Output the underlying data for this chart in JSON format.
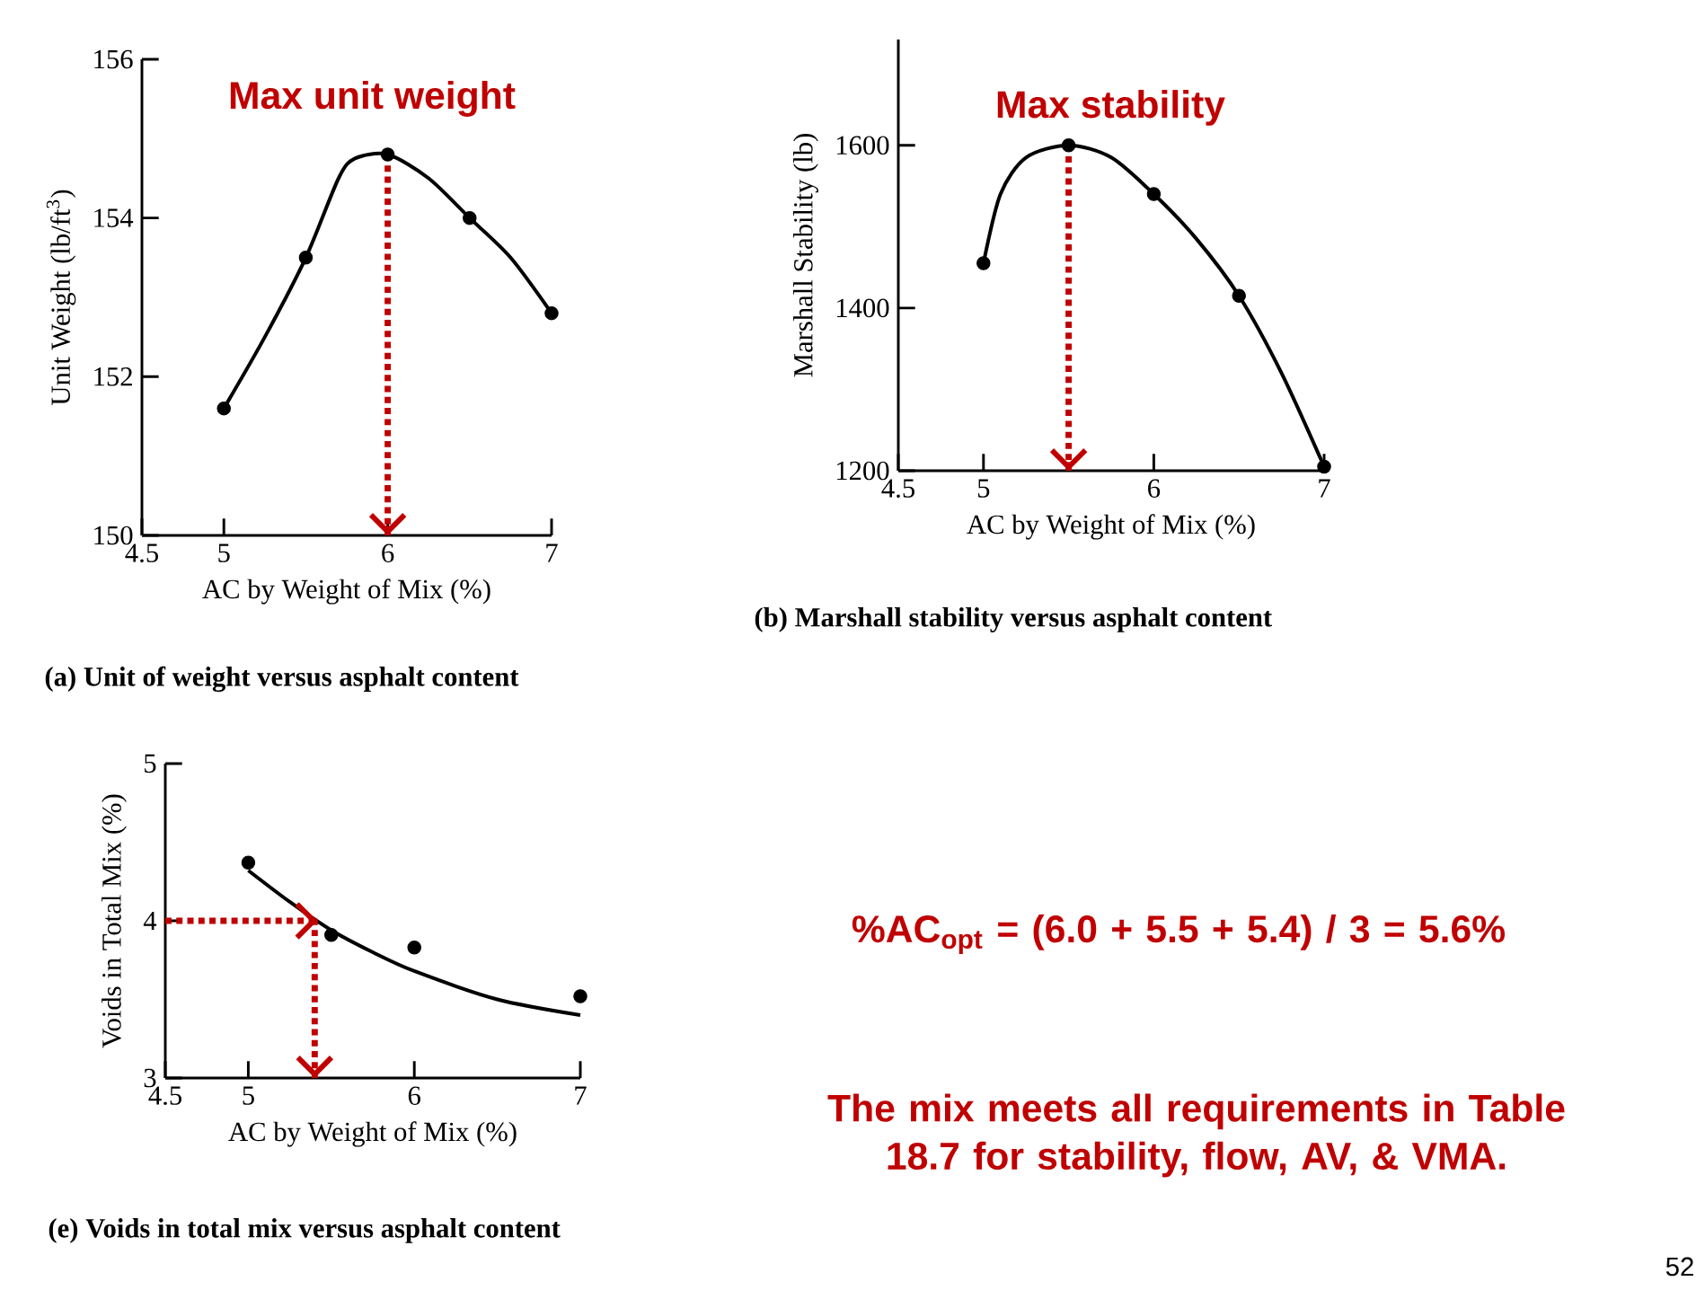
{
  "chart_data": [
    {
      "type": "scatter",
      "title": "(a) Unit of weight versus asphalt content",
      "xlabel": "AC by Weight of Mix (%)",
      "ylabel": "Unit Weight (lb/ft$^{3}$)",
      "xlim": [
        4.5,
        7
      ],
      "ylim": [
        150,
        156
      ],
      "xticks": [
        4.5,
        5,
        6,
        7
      ],
      "yticks": [
        150,
        152,
        154,
        156
      ],
      "annotations": [
        "Max unit weight"
      ],
      "series": [
        {
          "type": "scatter",
          "color": "#000000",
          "x": [
            5,
            5.5,
            6,
            6.5,
            7
          ],
          "values": [
            151.6,
            153.5,
            154.8,
            154.0,
            152.8
          ]
        },
        {
          "type": "line",
          "color": "#000000",
          "x": [
            5,
            5.25,
            5.5,
            5.7,
            5.8,
            6,
            6.25,
            6.5,
            6.75,
            7
          ],
          "values": [
            151.6,
            152.5,
            153.5,
            154.5,
            154.75,
            154.8,
            154.5,
            154.0,
            153.5,
            152.8
          ]
        }
      ],
      "ref_lines": [
        {
          "axis": "x",
          "value": 6,
          "color": "#c00000",
          "line_style": "dotted"
        }
      ]
    },
    {
      "type": "scatter",
      "title": "(b) Marshall stability versus asphalt content",
      "xlabel": "AC by Weight of Mix (%)",
      "ylabel": "Marshall Stability (lb)",
      "xlim": [
        4.5,
        7
      ],
      "ylim": [
        1200,
        1730
      ],
      "xticks": [
        4.5,
        5,
        6,
        7
      ],
      "yticks": [
        1200,
        1400,
        1600
      ],
      "annotations": [
        "Max stability"
      ],
      "series": [
        {
          "type": "scatter",
          "color": "#000000",
          "x": [
            5,
            5.5,
            6,
            6.5,
            7
          ],
          "values": [
            1455,
            1600,
            1540,
            1415,
            1205
          ]
        },
        {
          "type": "line",
          "color": "#000000",
          "x": [
            5,
            5.1,
            5.25,
            5.5,
            5.75,
            6,
            6.25,
            6.5,
            6.75,
            7
          ],
          "values": [
            1455,
            1540,
            1585,
            1600,
            1585,
            1540,
            1485,
            1415,
            1320,
            1205
          ]
        }
      ],
      "ref_lines": [
        {
          "axis": "x",
          "value": 5.5,
          "color": "#c00000",
          "line_style": "dotted"
        }
      ]
    },
    {
      "type": "scatter",
      "title": "(e) Voids in total mix versus asphalt content",
      "xlabel": "AC by Weight of Mix (%)",
      "ylabel": "Voids in Total Mix (%)",
      "xlim": [
        4.5,
        7
      ],
      "ylim": [
        3,
        5
      ],
      "xticks": [
        4.5,
        5,
        6,
        7
      ],
      "yticks": [
        3,
        4,
        5
      ],
      "series": [
        {
          "type": "scatter",
          "color": "#000000",
          "x": [
            5,
            5.5,
            6,
            7
          ],
          "values": [
            4.37,
            3.91,
            3.83,
            3.52
          ]
        },
        {
          "type": "line",
          "color": "#000000",
          "x": [
            5,
            5.25,
            5.5,
            5.75,
            6,
            6.5,
            7
          ],
          "values": [
            4.32,
            4.12,
            3.94,
            3.8,
            3.68,
            3.5,
            3.4
          ]
        }
      ],
      "ref_lines": [
        {
          "axis": "y",
          "value": 4,
          "color": "#c00000",
          "line_style": "dotted"
        },
        {
          "axis": "x",
          "value": 5.4,
          "color": "#c00000",
          "line_style": "dotted"
        }
      ]
    },
    {
      "type": "other",
      "annotations": [
        "%AC$_{opt}$ = (6.0 + 5.5 + 5.4) / 3 = 5.6%",
        "The mix meets all requirements in Table 18.7 for stability, flow, AV, & VMA.",
        "52"
      ]
    }
  ]
}
